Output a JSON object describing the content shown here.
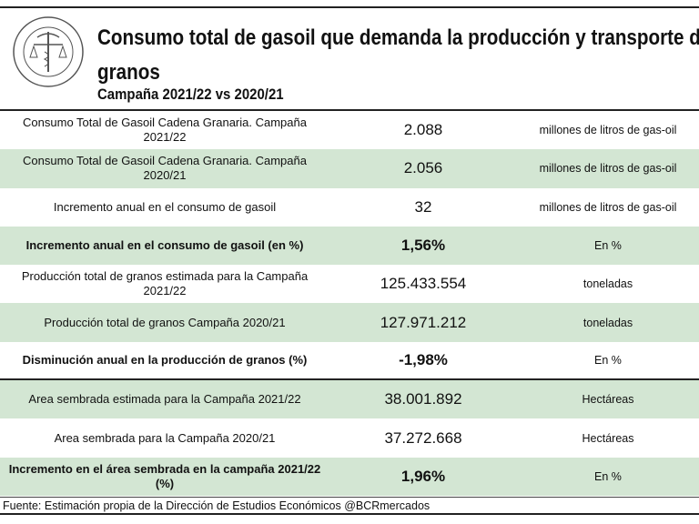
{
  "header": {
    "logo_text": "BOLSA DE COMERCIO DE ROSARIO",
    "title": "Consumo total de gasoil que demanda la producción y transporte de granos",
    "subtitle": "Campaña 2021/22 vs 2020/21"
  },
  "rows": [
    {
      "label": "Consumo Total de Gasoil Cadena Granaria. Campaña 2021/22",
      "value": "2.088",
      "unit": "millones de litros de gas-oil"
    },
    {
      "label": "Consumo Total de Gasoil Cadena Granaria. Campaña 2020/21",
      "value": "2.056",
      "unit": "millones de litros de gas-oil"
    },
    {
      "label": "Incremento anual en el consumo de gasoil",
      "value": "32",
      "unit": "millones de litros de gas-oil"
    },
    {
      "label": "Incremento anual en el consumo de gasoil (en %)",
      "value": "1,56%",
      "unit": "En %"
    },
    {
      "label": "Producción total de granos estimada para la Campaña 2021/22",
      "value": "125.433.554",
      "unit": "toneladas"
    },
    {
      "label": "Producción total de granos Campaña 2020/21",
      "value": "127.971.212",
      "unit": "toneladas"
    },
    {
      "label": "Disminución anual en la producción de granos (%)",
      "value": "-1,98%",
      "unit": "En %"
    },
    {
      "label": "Area sembrada estimada para la Campaña 2021/22",
      "value": "38.001.892",
      "unit": "Hectáreas"
    },
    {
      "label": "Area sembrada para la Campaña 2020/21",
      "value": "37.272.668",
      "unit": "Hectáreas"
    },
    {
      "label": "Incremento en el área sembrada en la campaña 2021/22 (%)",
      "value": "1,96%",
      "unit": "En %"
    }
  ],
  "footer": "Fuente: Estimación propia de la Dirección de Estudios Económicos @BCRmercados",
  "colors": {
    "row_highlight": "#d3e6d3",
    "border": "#222222"
  }
}
